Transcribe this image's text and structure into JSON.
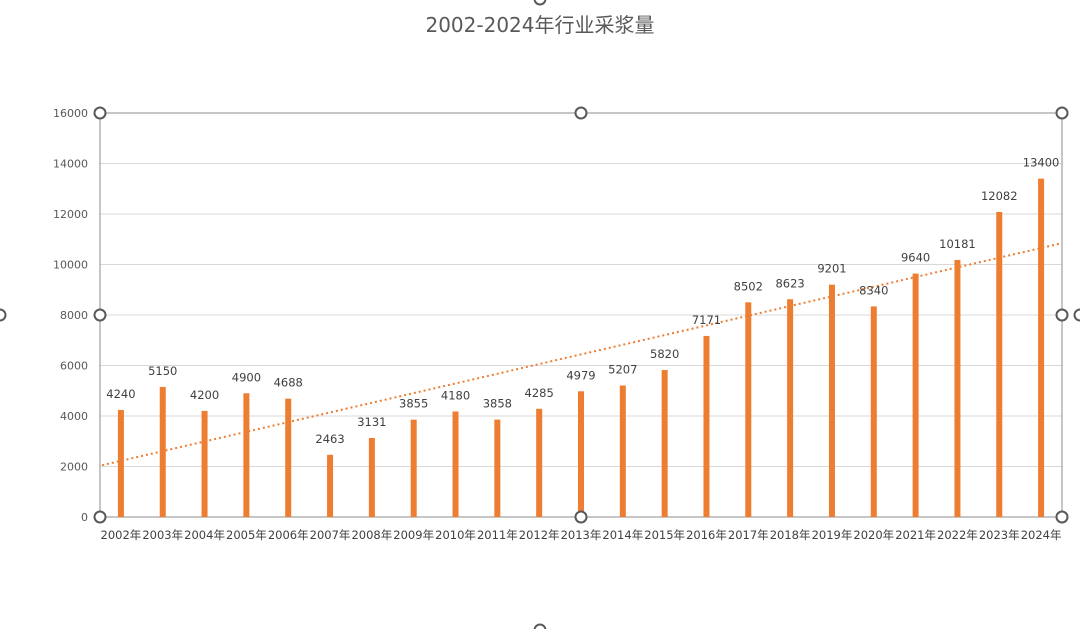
{
  "chart_data": {
    "type": "bar",
    "title": "2002-2024年行业采浆量",
    "xlabel": "",
    "ylabel": "",
    "ylim": [
      0,
      16000
    ],
    "yticks": [
      0,
      2000,
      4000,
      6000,
      8000,
      10000,
      12000,
      14000,
      16000
    ],
    "grid": true,
    "legend": "none",
    "trendline": "linear",
    "categories": [
      "2002年",
      "2003年",
      "2004年",
      "2005年",
      "2006年",
      "2007年",
      "2008年",
      "2009年",
      "2010年",
      "2011年",
      "2012年",
      "2013年",
      "2014年",
      "2015年",
      "2016年",
      "2017年",
      "2018年",
      "2019年",
      "2020年",
      "2021年",
      "2022年",
      "2023年",
      "2024年"
    ],
    "values": [
      4240,
      5150,
      4200,
      4900,
      4688,
      2463,
      3131,
      3855,
      4180,
      3858,
      4285,
      4979,
      5207,
      5820,
      7171,
      8502,
      8623,
      9201,
      8340,
      9640,
      10181,
      12082,
      13400
    ],
    "colors": {
      "bar": "#ED7D31",
      "trend": "#ED7D31",
      "grid": "#D9D9D9",
      "axis": "#BFBFBF"
    }
  }
}
